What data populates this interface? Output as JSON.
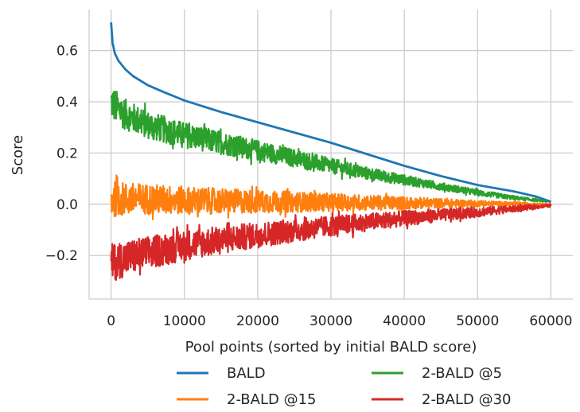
{
  "chart_data": {
    "type": "line",
    "title": "",
    "xlabel": "Pool points (sorted by initial BALD score)",
    "ylabel": "Score",
    "xlim": [
      -3000,
      63000
    ],
    "ylim": [
      -0.37,
      0.76
    ],
    "xticks": [
      0,
      10000,
      20000,
      30000,
      40000,
      50000,
      60000
    ],
    "xtick_labels": [
      "0",
      "10000",
      "20000",
      "30000",
      "40000",
      "50000",
      "60000"
    ],
    "yticks": [
      -0.2,
      0.0,
      0.2,
      0.4,
      0.6
    ],
    "ytick_labels": [
      "−0.2",
      "0.0",
      "0.2",
      "0.4",
      "0.6"
    ],
    "grid": true,
    "legend": "bottom-center, 2 columns",
    "series": [
      {
        "name": "BALD",
        "color": "#1f77b4",
        "noisy": false,
        "x": [
          0,
          200,
          500,
          1000,
          2000,
          3000,
          5000,
          7000,
          10000,
          15000,
          20000,
          25000,
          30000,
          35000,
          40000,
          45000,
          50000,
          55000,
          58000,
          60000
        ],
        "y": [
          0.71,
          0.63,
          0.59,
          0.56,
          0.525,
          0.5,
          0.465,
          0.44,
          0.405,
          0.36,
          0.32,
          0.28,
          0.24,
          0.195,
          0.15,
          0.11,
          0.075,
          0.05,
          0.03,
          0.01
        ]
      },
      {
        "name": "2-BALD @5",
        "color": "#2ca02c",
        "noisy": true,
        "x": [
          0,
          1000,
          2000,
          5000,
          10000,
          15000,
          20000,
          25000,
          30000,
          35000,
          40000,
          45000,
          50000,
          55000,
          60000
        ],
        "y": [
          0.4,
          0.37,
          0.35,
          0.31,
          0.27,
          0.24,
          0.21,
          0.18,
          0.15,
          0.12,
          0.095,
          0.07,
          0.045,
          0.025,
          0.01
        ],
        "band": [
          0.07,
          0.065,
          0.06,
          0.055,
          0.05,
          0.045,
          0.04,
          0.035,
          0.03,
          0.025,
          0.02,
          0.015,
          0.012,
          0.008,
          0.003
        ]
      },
      {
        "name": "2-BALD @15",
        "color": "#ff7f0e",
        "noisy": true,
        "x": [
          0,
          2000,
          5000,
          10000,
          20000,
          30000,
          40000,
          50000,
          60000
        ],
        "y": [
          0.02,
          0.02,
          0.02,
          0.015,
          0.01,
          0.008,
          0.005,
          0.003,
          0.0
        ],
        "band": [
          0.07,
          0.065,
          0.06,
          0.055,
          0.045,
          0.035,
          0.025,
          0.012,
          0.003
        ]
      },
      {
        "name": "2-BALD @30",
        "color": "#d62728",
        "noisy": true,
        "x": [
          0,
          2000,
          5000,
          10000,
          20000,
          30000,
          40000,
          50000,
          60000
        ],
        "y": [
          -0.23,
          -0.21,
          -0.19,
          -0.16,
          -0.12,
          -0.085,
          -0.055,
          -0.03,
          -0.005
        ],
        "band": [
          0.075,
          0.07,
          0.065,
          0.06,
          0.05,
          0.04,
          0.03,
          0.02,
          0.005
        ]
      }
    ]
  }
}
